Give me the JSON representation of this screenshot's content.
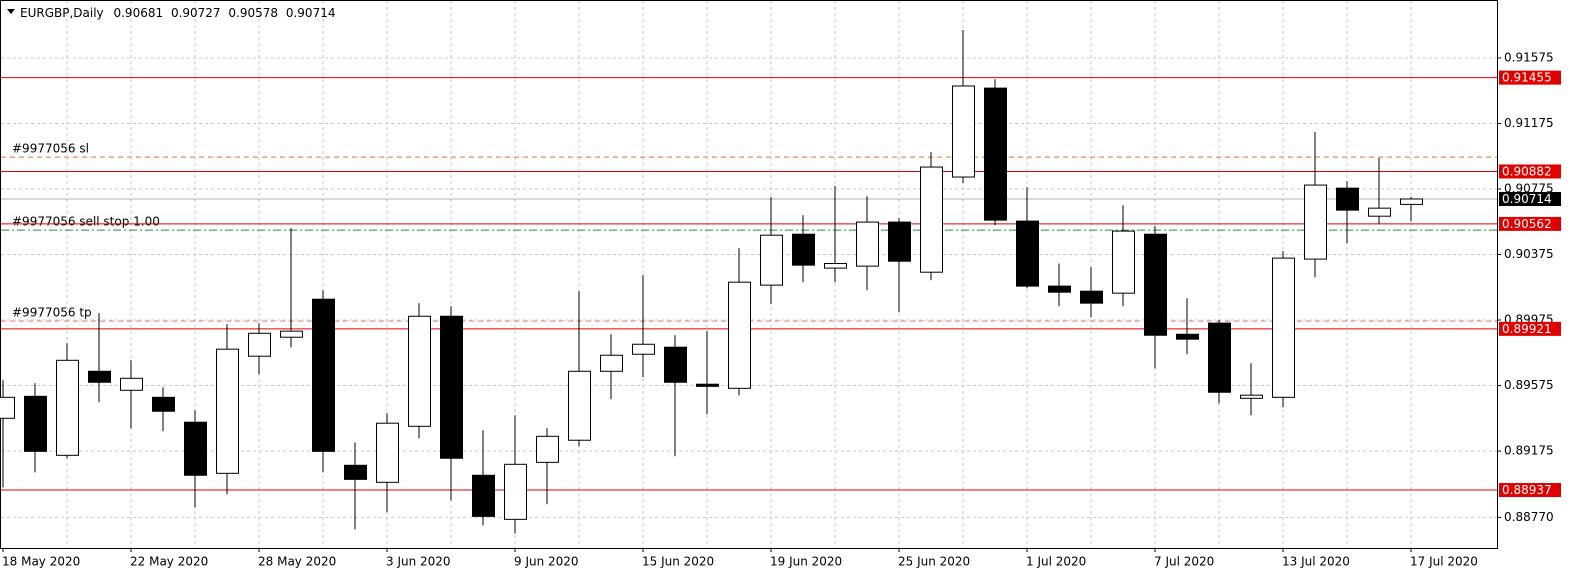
{
  "chart_data": {
    "type": "candlestick",
    "title": "EURGBP,Daily",
    "categories": [
      "18 May 2020",
      null,
      null,
      null,
      "22 May 2020",
      null,
      null,
      null,
      "28 May 2020",
      null,
      null,
      null,
      "3 Jun 2020",
      null,
      null,
      null,
      "9 Jun 2020",
      null,
      null,
      null,
      "15 Jun 2020",
      null,
      null,
      null,
      "19 Jun 2020",
      null,
      null,
      null,
      "25 Jun 2020",
      null,
      null,
      null,
      "1 Jul 2020",
      null,
      null,
      null,
      "7 Jul 2020",
      null,
      null,
      null,
      "13 Jul 2020",
      null,
      null,
      null,
      "17 Jul 2020"
    ],
    "open": [
      0.89375,
      0.89509,
      0.89149,
      0.89662,
      0.89546,
      0.89503,
      0.89351,
      0.89039,
      0.89754,
      0.8987,
      0.90102,
      0.89088,
      0.88984,
      0.89326,
      0.89998,
      0.89027,
      0.88758,
      0.89106,
      0.89241,
      0.89662,
      0.89766,
      0.89809,
      0.89583,
      0.89558,
      0.90188,
      0.90499,
      0.90292,
      0.90304,
      0.90573,
      0.90267,
      0.90848,
      0.91391,
      0.90579,
      0.90182,
      0.90151,
      0.90139,
      0.90499,
      0.89888,
      0.89956,
      0.89497,
      0.89503,
      0.90347,
      0.9078,
      0.90609,
      0.90681
    ],
    "high": [
      0.89607,
      0.89589,
      0.89833,
      0.90017,
      0.89729,
      0.89564,
      0.89424,
      0.8995,
      0.89956,
      0.90536,
      0.90157,
      0.89228,
      0.89406,
      0.90078,
      0.90059,
      0.89302,
      0.89393,
      0.89314,
      0.90151,
      0.89888,
      0.90249,
      0.89882,
      0.89907,
      0.90414,
      0.90725,
      0.90615,
      0.90793,
      0.90731,
      0.90597,
      0.91,
      0.91746,
      0.91446,
      0.90786,
      0.9032,
      0.90298,
      0.90676,
      0.90548,
      0.90108,
      0.89974,
      0.89711,
      0.90395,
      0.91123,
      0.90823,
      0.90964,
      0.90727
    ],
    "low": [
      0.88953,
      0.89045,
      0.89131,
      0.89473,
      0.89314,
      0.89296,
      0.88831,
      0.88911,
      0.89644,
      0.89809,
      0.89045,
      0.88697,
      0.88801,
      0.89253,
      0.88874,
      0.88721,
      0.88672,
      0.8885,
      0.89204,
      0.89491,
      0.89626,
      0.89143,
      0.894,
      0.89516,
      0.90072,
      0.90206,
      0.90206,
      0.90157,
      0.90023,
      0.90218,
      0.90811,
      0.90554,
      0.90169,
      0.90059,
      0.89992,
      0.90059,
      0.8968,
      0.89766,
      0.89467,
      0.89393,
      0.89442,
      0.90237,
      0.90444,
      0.9056,
      0.90578
    ],
    "close": [
      0.89503,
      0.89173,
      0.89729,
      0.89595,
      0.89619,
      0.89418,
      0.89027,
      0.89797,
      0.89894,
      0.89907,
      0.89173,
      0.89002,
      0.89345,
      0.89998,
      0.89131,
      0.88776,
      0.89094,
      0.89265,
      0.89662,
      0.8976,
      0.89827,
      0.89595,
      0.8957,
      0.90206,
      0.90493,
      0.9031,
      0.9032,
      0.90573,
      0.90334,
      0.90909,
      0.91404,
      0.90585,
      0.90182,
      0.90145,
      0.90078,
      0.90518,
      0.89882,
      0.89858,
      0.89534,
      0.89516,
      0.90353,
      0.90799,
      0.90646,
      0.90658,
      0.90714
    ],
    "ylim": [
      0.88583,
      0.91929
    ],
    "yticks": [
      0.91575,
      0.91175,
      0.90775,
      0.90375,
      0.89975,
      0.89575,
      0.89175,
      {
        "value": 0.8877,
        "label": "0.88770"
      }
    ],
    "grid": true,
    "levels": [
      {
        "value": 0.91455,
        "color": "#e00000"
      },
      {
        "value": 0.90882,
        "color": "#e00000"
      },
      {
        "value": 0.90562,
        "color": "#e00000"
      },
      {
        "value": 0.89921,
        "color": "#e00000"
      },
      {
        "value": 0.88937,
        "color": "#e00000"
      }
    ],
    "orders": [
      {
        "label": "#9977056 sl",
        "value": 0.9097,
        "color": "#e07040",
        "style": "dash"
      },
      {
        "label": "#9977056 sell stop 1.00",
        "value": 0.90524,
        "color": "#2e8b3a",
        "style": "dashdot"
      },
      {
        "label": "#9977056 tp",
        "value": 0.89968,
        "color": "#e08080",
        "style": "dash"
      }
    ],
    "bull_color": "#ffffff",
    "bear_color": "#000000"
  }
}
